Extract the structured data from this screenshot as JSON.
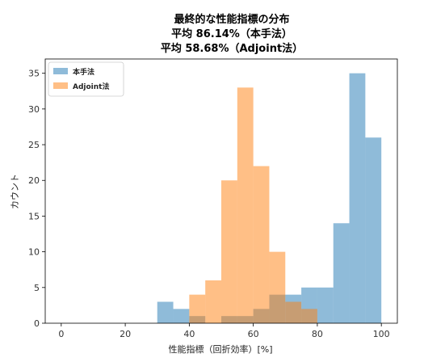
{
  "chart_data": {
    "type": "histogram",
    "title": "最終的な性能指標の分布",
    "subtitle_lines": [
      "平均 86.14%（本手法）",
      "平均 58.68%（Adjoint法）"
    ],
    "xlabel": "性能指標（回折効率）[%]",
    "ylabel": "カウント",
    "xlim": [
      -5,
      105
    ],
    "ylim": [
      0,
      37
    ],
    "xticks": [
      0,
      20,
      40,
      60,
      80,
      100
    ],
    "yticks": [
      0,
      5,
      10,
      15,
      20,
      25,
      30,
      35
    ],
    "xtick_labels": [
      "0",
      "20",
      "40",
      "60",
      "80",
      "100"
    ],
    "ytick_labels": [
      "0",
      "5",
      "10",
      "15",
      "20",
      "25",
      "30",
      "35"
    ],
    "legend_position": "top-left",
    "grid": false,
    "series": [
      {
        "name": "本手法",
        "color": "#1f77b4",
        "opacity": 0.5,
        "bins": [
          {
            "x0": 30,
            "x1": 35,
            "count": 3
          },
          {
            "x0": 35,
            "x1": 40,
            "count": 2
          },
          {
            "x0": 40,
            "x1": 45,
            "count": 1
          },
          {
            "x0": 45,
            "x1": 50,
            "count": 0
          },
          {
            "x0": 50,
            "x1": 55,
            "count": 1
          },
          {
            "x0": 55,
            "x1": 60,
            "count": 1
          },
          {
            "x0": 60,
            "x1": 65,
            "count": 2
          },
          {
            "x0": 65,
            "x1": 70,
            "count": 4
          },
          {
            "x0": 70,
            "x1": 75,
            "count": 4
          },
          {
            "x0": 75,
            "x1": 80,
            "count": 5
          },
          {
            "x0": 80,
            "x1": 85,
            "count": 5
          },
          {
            "x0": 85,
            "x1": 90,
            "count": 14
          },
          {
            "x0": 90,
            "x1": 95,
            "count": 35
          },
          {
            "x0": 95,
            "x1": 100,
            "count": 26
          }
        ]
      },
      {
        "name": "Adjoint法",
        "color": "#ff7f0e",
        "opacity": 0.5,
        "bins": [
          {
            "x0": 40,
            "x1": 45,
            "count": 4
          },
          {
            "x0": 45,
            "x1": 50,
            "count": 6
          },
          {
            "x0": 50,
            "x1": 55,
            "count": 20
          },
          {
            "x0": 55,
            "x1": 60,
            "count": 33
          },
          {
            "x0": 60,
            "x1": 65,
            "count": 22
          },
          {
            "x0": 65,
            "x1": 70,
            "count": 10
          },
          {
            "x0": 70,
            "x1": 75,
            "count": 3
          },
          {
            "x0": 75,
            "x1": 80,
            "count": 2
          }
        ]
      }
    ]
  }
}
